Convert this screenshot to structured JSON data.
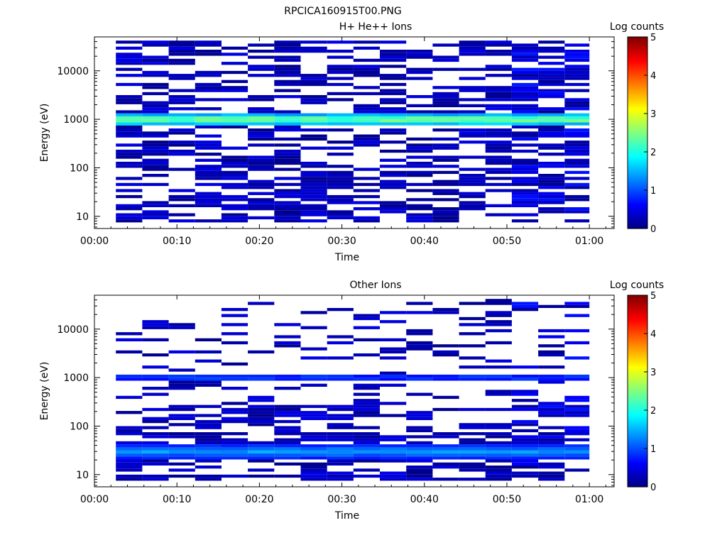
{
  "figure_title": "RPCICA160915T00.PNG",
  "chart_data": [
    {
      "type": "heatmap",
      "title": "H+ He++ Ions",
      "xlabel": "Time",
      "ylabel": "Energy (eV)",
      "colorbar_label": "Log counts",
      "colorbar_ticks": [
        "0",
        "1",
        "2",
        "3",
        "4",
        "5"
      ],
      "color_scale": "log",
      "x_ticks": [
        "00:00",
        "00:10",
        "00:20",
        "00:30",
        "00:40",
        "00:50",
        "01:00"
      ],
      "x_range_minutes": [
        0,
        63
      ],
      "y_ticks": [
        "10",
        "100",
        "1000",
        "10000"
      ],
      "y_range_eV": [
        5.6,
        50000
      ],
      "y_scale": "log",
      "time_bins_minutes": [
        2.6,
        5.8,
        9.0,
        12.2,
        15.4,
        18.6,
        21.8,
        25.0,
        28.2,
        31.4,
        34.6,
        37.8,
        41.0,
        44.2,
        47.4,
        50.6,
        53.8,
        57.0,
        60.0
      ],
      "dominant_band_eV": [
        780,
        1250
      ],
      "dominant_band_log_counts": 2.6,
      "seed": 31
    },
    {
      "type": "heatmap",
      "title": "Other Ions",
      "xlabel": "Time",
      "ylabel": "Energy (eV)",
      "colorbar_label": "Log counts",
      "colorbar_ticks": [
        "0",
        "1",
        "2",
        "3",
        "4",
        "5"
      ],
      "color_scale": "log",
      "x_ticks": [
        "00:00",
        "00:10",
        "00:20",
        "00:30",
        "00:40",
        "00:50",
        "01:00"
      ],
      "x_range_minutes": [
        0,
        63
      ],
      "y_ticks": [
        "10",
        "100",
        "1000",
        "10000"
      ],
      "y_range_eV": [
        5.6,
        50000
      ],
      "y_scale": "log",
      "time_bins_minutes": [
        2.6,
        5.8,
        9.0,
        12.2,
        15.4,
        18.6,
        21.8,
        25.0,
        28.2,
        31.4,
        34.6,
        37.8,
        41.0,
        44.2,
        47.4,
        50.6,
        53.8,
        57.0,
        60.0
      ],
      "dominant_band_eV": [
        22,
        40
      ],
      "dominant_band_log_counts": 1.4,
      "secondary_band_eV": [
        850,
        1150
      ],
      "secondary_band_log_counts": 0.8,
      "seed": 77
    }
  ]
}
